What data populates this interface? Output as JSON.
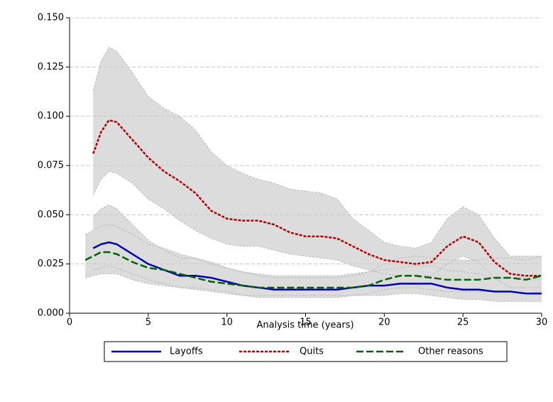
{
  "chart_data": {
    "type": "line",
    "x_label": "Analysis time (years)",
    "x": [
      1,
      1.5,
      2,
      2.5,
      3,
      4,
      5,
      6,
      7,
      8,
      9,
      10,
      11,
      12,
      13,
      14,
      15,
      16,
      17,
      18,
      19,
      20,
      21,
      22,
      23,
      24,
      25,
      26,
      27,
      28,
      29,
      30
    ],
    "xlim": [
      0,
      30
    ],
    "xticks": [
      0,
      5,
      10,
      15,
      20,
      25,
      30
    ],
    "ylim": [
      0,
      0.15
    ],
    "yticks": [
      {
        "value": 0,
        "label": "0.000"
      },
      {
        "value": 0.025,
        "label": "0.025"
      },
      {
        "value": 0.05,
        "label": "0.050"
      },
      {
        "value": 0.075,
        "label": "0.075"
      },
      {
        "value": 0.1,
        "label": "0.100"
      },
      {
        "value": 0.125,
        "label": "0.125"
      },
      {
        "value": 0.15,
        "label": "0.150"
      }
    ],
    "grid": true,
    "band_color": "#dcdcdc",
    "legend": "bottom",
    "series": [
      {
        "name": "Layoffs",
        "color": "#0000aa",
        "dash": "solid",
        "values": [
          null,
          0.033,
          0.035,
          0.036,
          0.035,
          0.03,
          0.025,
          0.022,
          0.019,
          0.019,
          0.018,
          0.016,
          0.014,
          0.013,
          0.012,
          0.012,
          0.012,
          0.012,
          0.012,
          0.013,
          0.014,
          0.014,
          0.015,
          0.015,
          0.015,
          0.013,
          0.012,
          0.012,
          0.011,
          0.011,
          0.01,
          0.01
        ],
        "lower": [
          null,
          0.022,
          0.023,
          0.024,
          0.023,
          0.02,
          0.017,
          0.015,
          0.013,
          0.013,
          0.012,
          0.011,
          0.009,
          0.008,
          0.008,
          0.008,
          0.008,
          0.008,
          0.008,
          0.009,
          0.009,
          0.009,
          0.01,
          0.01,
          0.009,
          0.008,
          0.007,
          0.007,
          0.006,
          0.006,
          0.006,
          0.006
        ],
        "upper": [
          null,
          0.049,
          0.053,
          0.055,
          0.053,
          0.045,
          0.037,
          0.032,
          0.028,
          0.028,
          0.026,
          0.023,
          0.021,
          0.019,
          0.018,
          0.018,
          0.018,
          0.018,
          0.018,
          0.019,
          0.021,
          0.022,
          0.023,
          0.024,
          0.024,
          0.022,
          0.021,
          0.02,
          0.018,
          0.018,
          0.017,
          0.017
        ]
      },
      {
        "name": "Quits",
        "color": "#b00000",
        "dash": "short",
        "values": [
          null,
          0.081,
          0.092,
          0.098,
          0.097,
          0.088,
          0.079,
          0.072,
          0.067,
          0.061,
          0.052,
          0.048,
          0.047,
          0.047,
          0.045,
          0.041,
          0.039,
          0.039,
          0.038,
          0.034,
          0.03,
          0.027,
          0.026,
          0.025,
          0.026,
          0.034,
          0.039,
          0.036,
          0.026,
          0.02,
          0.019,
          0.019
        ],
        "lower": [
          null,
          0.06,
          0.068,
          0.072,
          0.071,
          0.066,
          0.058,
          0.053,
          0.047,
          0.042,
          0.038,
          0.035,
          0.034,
          0.034,
          0.032,
          0.03,
          0.029,
          0.028,
          0.027,
          0.024,
          0.022,
          0.02,
          0.019,
          0.019,
          0.019,
          0.025,
          0.029,
          0.026,
          0.018,
          0.013,
          0.013,
          0.013
        ],
        "upper": [
          null,
          0.113,
          0.128,
          0.135,
          0.133,
          0.122,
          0.11,
          0.104,
          0.1,
          0.093,
          0.082,
          0.075,
          0.071,
          0.068,
          0.066,
          0.063,
          0.062,
          0.061,
          0.058,
          0.048,
          0.042,
          0.036,
          0.034,
          0.033,
          0.036,
          0.048,
          0.054,
          0.05,
          0.038,
          0.029,
          0.029,
          0.029
        ]
      },
      {
        "name": "Other reasons",
        "color": "#006400",
        "dash": "long",
        "values": [
          0.027,
          0.029,
          0.031,
          0.031,
          0.03,
          0.026,
          0.023,
          0.022,
          0.02,
          0.018,
          0.016,
          0.015,
          0.014,
          0.013,
          0.013,
          0.013,
          0.013,
          0.013,
          0.013,
          0.013,
          0.014,
          0.017,
          0.019,
          0.019,
          0.018,
          0.017,
          0.017,
          0.017,
          0.018,
          0.018,
          0.017,
          0.019
        ],
        "lower": [
          0.018,
          0.019,
          0.02,
          0.02,
          0.02,
          0.017,
          0.015,
          0.014,
          0.013,
          0.012,
          0.011,
          0.01,
          0.009,
          0.009,
          0.009,
          0.009,
          0.009,
          0.009,
          0.009,
          0.009,
          0.01,
          0.012,
          0.013,
          0.013,
          0.012,
          0.011,
          0.011,
          0.011,
          0.011,
          0.011,
          0.01,
          0.011
        ],
        "upper": [
          0.04,
          0.042,
          0.044,
          0.045,
          0.044,
          0.04,
          0.035,
          0.033,
          0.03,
          0.028,
          0.025,
          0.023,
          0.021,
          0.02,
          0.019,
          0.019,
          0.019,
          0.019,
          0.019,
          0.02,
          0.021,
          0.025,
          0.028,
          0.029,
          0.028,
          0.027,
          0.027,
          0.027,
          0.028,
          0.028,
          0.027,
          0.029
        ]
      }
    ]
  }
}
